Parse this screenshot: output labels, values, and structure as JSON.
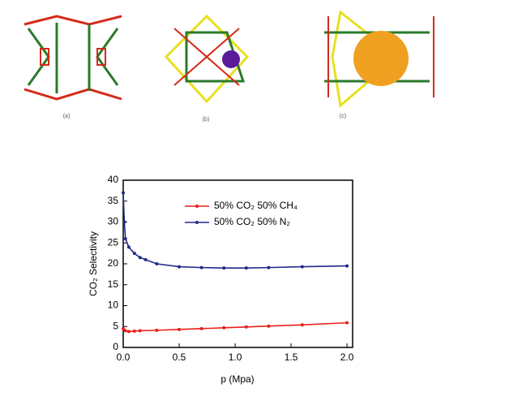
{
  "figure_labels": [
    "(a)",
    "(b)",
    "(c)"
  ],
  "chart_data": {
    "type": "line",
    "x_label": "p (Mpa)",
    "y_label": "CO₂ Selectivity",
    "xlim": [
      0,
      2.05
    ],
    "ylim": [
      0,
      40
    ],
    "xticks": [
      {
        "value": 0,
        "label": "0.0"
      },
      {
        "value": 0.5,
        "label": "0.5"
      },
      {
        "value": 1,
        "label": "1.0"
      },
      {
        "value": 1.5,
        "label": "1.5"
      },
      {
        "value": 2,
        "label": "2.0"
      }
    ],
    "yticks": [
      0,
      5,
      10,
      15,
      20,
      25,
      30,
      35,
      40
    ],
    "legend": "upper-right",
    "series": [
      {
        "name": "50% CO₂ 50% CH₄",
        "color": "#e8201c",
        "x": [
          0,
          0.02,
          0.05,
          0.1,
          0.15,
          0.3,
          0.5,
          0.7,
          0.9,
          1.1,
          1.3,
          1.6,
          2.0
        ],
        "values": [
          4.5,
          4,
          3.8,
          3.9,
          4,
          4.1,
          4.3,
          4.5,
          4.7,
          4.9,
          5.1,
          5.4,
          5.9
        ]
      },
      {
        "name": "50% CO₂ 50% N₂",
        "color": "#1f2a8a",
        "x": [
          0,
          0.01,
          0.02,
          0.05,
          0.1,
          0.15,
          0.2,
          0.3,
          0.5,
          0.7,
          0.9,
          1.1,
          1.3,
          1.6,
          2.0
        ],
        "values": [
          37,
          30,
          26,
          24,
          22.5,
          21.5,
          21,
          20,
          19.3,
          19.1,
          19,
          19,
          19.1,
          19.3,
          19.5
        ]
      }
    ]
  }
}
